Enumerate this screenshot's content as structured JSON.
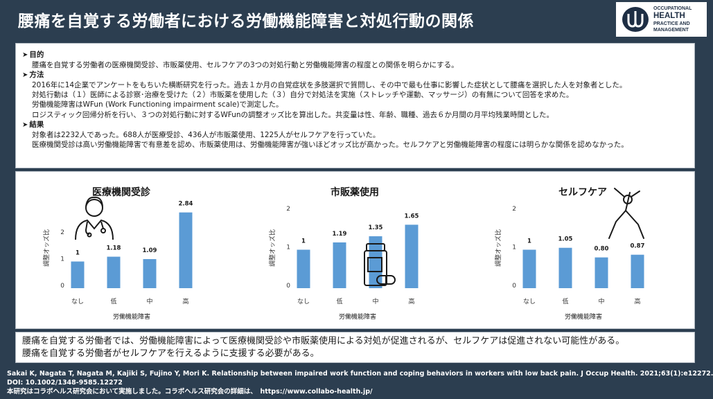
{
  "header": {
    "title": "腰痛を自覚する労働者における労働機能障害と対処行動の関係",
    "logo": {
      "line1": "OCCUPATIONAL",
      "line2": "HEALTH",
      "line3": "PRACTICE AND",
      "line4": "MANAGEMENT"
    }
  },
  "summary": {
    "arrow": "➤",
    "purpose_title": "目的",
    "purpose_lines": [
      "腰痛を自覚する労働者の医療機関受診、市販薬使用、セルフケアの3つの対処行動と労働機能障害の程度との関係を明らかにする。"
    ],
    "method_title": "方法",
    "method_lines": [
      "2016年に14企業でアンケートをもちいた横断研究を行った。過去１か月の自覚症状を多肢選択で質問し、その中で最も仕事に影響した症状として腰痛を選択した人を対象者とした。",
      "対処行動は（１）医師による診察･治療を受けた（２）市販薬を使用した（３）自分で対処法を実施（ストレッチや運動、マッサージ）の有無について回答を求めた。",
      "労働機能障害はWFun (Work Functioning impairment scale)で測定した。",
      "ロジスティック回帰分析を行い、３つの対処行動に対するWFunの調整オッズ比を算出した。共変量は性、年齢、職種、過去６か月間の月平均残業時間とした。"
    ],
    "result_title": "結果",
    "result_lines": [
      "対象者は2232人であった。688人が医療受診、436人が市販薬使用、1225人がセルフケアを行っていた。",
      "医療機関受診は高い労働機能障害で有意差を認め、市販薬使用は、労働機能障害が強いほどオッズ比が高かった。セルフケアと労働機能障害の程度には明らかな関係を認めなかった。"
    ]
  },
  "chart_data": [
    {
      "type": "bar",
      "title": "医療機関受診",
      "categories": [
        "なし",
        "低",
        "中",
        "高"
      ],
      "values": [
        1,
        1.18,
        1.09,
        2.84
      ],
      "value_labels": [
        "1",
        "1.18",
        "1.09",
        "2.84"
      ],
      "ylabel": "調整オッズ比",
      "xlabel": "労働機能障害",
      "ylim": [
        0,
        3.4
      ],
      "yticks": [
        0,
        1,
        2
      ],
      "icon": "doctor-icon"
    },
    {
      "type": "bar",
      "title": "市販薬使用",
      "categories": [
        "なし",
        "低",
        "中",
        "高"
      ],
      "values": [
        1,
        1.19,
        1.35,
        1.65
      ],
      "value_labels": [
        "1",
        "1.19",
        "1.35",
        "1.65"
      ],
      "ylabel": "調整オッズ比",
      "xlabel": "労働機能障害",
      "ylim": [
        0,
        2.35
      ],
      "yticks": [
        0,
        1,
        2
      ],
      "icon": "medicine-bottle-icon"
    },
    {
      "type": "bar",
      "title": "セルフケア",
      "categories": [
        "なし",
        "低",
        "中",
        "高"
      ],
      "values": [
        1,
        1.05,
        0.8,
        0.87
      ],
      "value_labels": [
        "1",
        "1.05",
        "0.80",
        "0.87"
      ],
      "ylabel": "調整オッズ比",
      "xlabel": "労働機能障害",
      "ylim": [
        0,
        2.35
      ],
      "yticks": [
        0,
        1,
        2
      ],
      "icon": "stretching-person-icon"
    }
  ],
  "colors": {
    "bar": "#5b9bd5",
    "background": "#2c3e50"
  },
  "conclusion": {
    "lines": [
      "腰痛を自覚する労働者では、労働機能障害によって医療機関受診や市販薬使用による対処が促進されるが、セルフケアは促進されない可能性がある。",
      "腰痛を自覚する労働者がセルフケアを行えるように支援する必要がある。"
    ]
  },
  "footer": {
    "citation": "Sakai K, Nagata T, Nagata M, Kajiki S, Fujino Y, Mori K. Relationship between impaired work function and coping behaviors in workers with low back pain. J Occup Health. 2021;63(1):e12272.",
    "doi": "DOI: 10.1002/1348-9585.12272",
    "note": "本研究はコラボヘルス研究会において実施しました。コラボヘルス研究会の詳細は、　https://www.collabo-health.jp/"
  }
}
